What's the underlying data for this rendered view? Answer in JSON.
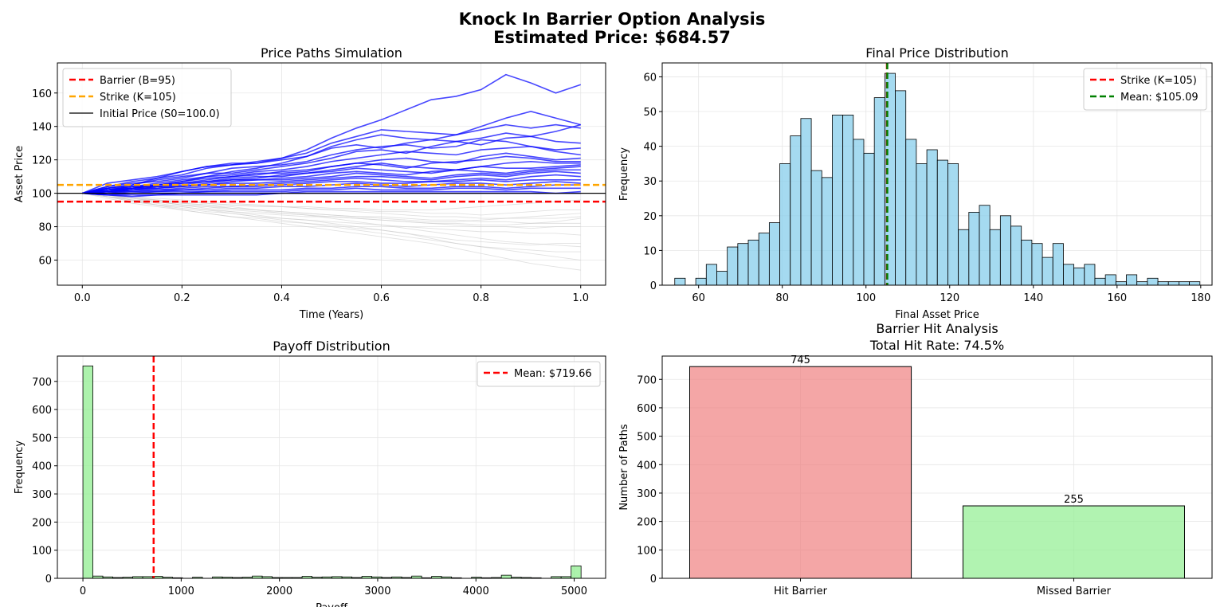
{
  "figure": {
    "title_line1": "Knock In Barrier Option Analysis",
    "title_line2": "Estimated Price: $684.57"
  },
  "chart_data": [
    {
      "id": "paths",
      "type": "line",
      "title": "Price Paths Simulation",
      "xlabel": "Time (Years)",
      "ylabel": "Asset Price",
      "xlim": [
        -0.05,
        1.05
      ],
      "ylim": [
        45,
        178
      ],
      "xticks": [
        0.0,
        0.2,
        0.4,
        0.6,
        0.8,
        1.0
      ],
      "xtick_labels": [
        "0.0",
        "0.2",
        "0.4",
        "0.6",
        "0.8",
        "1.0"
      ],
      "yticks": [
        60,
        80,
        100,
        120,
        140,
        160
      ],
      "grid": true,
      "legend_position": "upper-left",
      "reference_lines": [
        {
          "name": "Barrier (B=95)",
          "value": 95,
          "color": "#ff0000",
          "style": "dashed"
        },
        {
          "name": "Strike (K=105)",
          "value": 105,
          "color": "#ffa500",
          "style": "dashed"
        },
        {
          "name": "Initial Price (S0=100.0)",
          "value": 100,
          "color": "#000000",
          "style": "solid"
        }
      ],
      "time_grid": [
        0,
        0.05,
        0.1,
        0.15,
        0.2,
        0.25,
        0.3,
        0.35,
        0.4,
        0.45,
        0.5,
        0.55,
        0.6,
        0.65,
        0.7,
        0.75,
        0.8,
        0.85,
        0.9,
        0.95,
        1.0
      ],
      "highlight_color": "#0000ff",
      "background_color": "#c8c8c8",
      "highlighted_paths": [
        [
          100,
          106,
          108,
          110,
          113,
          116,
          118,
          118,
          121,
          126,
          133,
          139,
          144,
          150,
          156,
          158,
          162,
          171,
          166,
          160,
          165
        ],
        [
          100,
          103,
          105,
          109,
          111,
          115,
          117,
          119,
          121,
          124,
          130,
          134,
          138,
          137,
          136,
          135,
          140,
          145,
          149,
          145,
          141
        ],
        [
          100,
          102,
          104,
          106,
          108,
          110,
          113,
          115,
          118,
          122,
          127,
          129,
          127,
          130,
          132,
          135,
          138,
          141,
          139,
          141,
          139
        ],
        [
          100,
          104,
          106,
          107,
          109,
          112,
          112,
          114,
          116,
          118,
          121,
          125,
          126,
          124,
          128,
          131,
          129,
          133,
          134,
          131,
          130
        ],
        [
          100,
          101,
          103,
          105,
          107,
          110,
          111,
          113,
          114,
          116,
          119,
          121,
          123,
          125,
          124,
          123,
          126,
          127,
          128,
          125,
          123
        ],
        [
          100,
          102,
          103,
          105,
          107,
          109,
          110,
          112,
          112,
          113,
          116,
          118,
          120,
          121,
          119,
          118,
          122,
          124,
          122,
          120,
          121
        ],
        [
          100,
          103,
          104,
          105,
          106,
          108,
          110,
          111,
          113,
          114,
          116,
          118,
          117,
          115,
          118,
          119,
          120,
          122,
          121,
          119,
          119
        ],
        [
          100,
          102,
          104,
          104,
          105,
          107,
          109,
          110,
          110,
          112,
          114,
          116,
          118,
          116,
          115,
          114,
          116,
          118,
          119,
          118,
          118
        ],
        [
          100,
          101,
          102,
          104,
          106,
          107,
          108,
          109,
          111,
          112,
          113,
          115,
          114,
          113,
          112,
          114,
          116,
          115,
          115,
          116,
          117
        ],
        [
          100,
          101,
          103,
          104,
          104,
          106,
          108,
          108,
          109,
          110,
          112,
          113,
          112,
          111,
          113,
          114,
          113,
          112,
          114,
          115,
          116
        ],
        [
          100,
          102,
          103,
          103,
          104,
          105,
          107,
          108,
          108,
          109,
          110,
          112,
          111,
          110,
          109,
          111,
          112,
          111,
          113,
          114,
          114
        ],
        [
          100,
          101,
          102,
          103,
          104,
          105,
          106,
          106,
          107,
          108,
          109,
          110,
          110,
          109,
          108,
          110,
          111,
          110,
          112,
          113,
          112
        ],
        [
          100,
          100,
          102,
          102,
          103,
          104,
          104,
          105,
          106,
          107,
          108,
          109,
          108,
          107,
          107,
          108,
          109,
          108,
          110,
          111,
          110
        ],
        [
          100,
          101,
          101,
          102,
          102,
          103,
          104,
          104,
          105,
          106,
          107,
          107,
          106,
          106,
          107,
          107,
          108,
          107,
          108,
          108,
          108
        ],
        [
          100,
          100,
          101,
          101,
          102,
          102,
          103,
          103,
          104,
          104,
          105,
          106,
          105,
          104,
          105,
          106,
          106,
          105,
          106,
          107,
          106
        ],
        [
          100,
          100,
          100,
          101,
          101,
          101,
          102,
          102,
          102,
          103,
          103,
          104,
          104,
          103,
          103,
          104,
          104,
          103,
          104,
          105,
          105
        ],
        [
          100,
          99,
          100,
          100,
          100,
          101,
          101,
          101,
          101,
          102,
          102,
          103,
          102,
          102,
          102,
          103,
          103,
          102,
          103,
          103,
          103
        ],
        [
          100,
          99,
          99,
          99,
          100,
          100,
          100,
          100,
          100,
          101,
          101,
          101,
          101,
          101,
          101,
          101,
          101,
          101,
          101,
          100,
          101
        ],
        [
          100,
          99,
          98,
          99,
          99,
          99,
          99,
          99,
          100,
          100,
          100,
          100,
          100,
          100,
          100,
          100,
          100,
          100,
          100,
          100,
          100
        ],
        [
          100,
          104,
          107,
          109,
          113,
          116,
          117,
          118,
          120,
          122,
          128,
          132,
          135,
          133,
          132,
          131,
          133,
          136,
          134,
          137,
          141
        ],
        [
          100,
          103,
          105,
          108,
          110,
          112,
          115,
          116,
          117,
          119,
          123,
          126,
          128,
          129,
          127,
          128,
          132,
          131,
          128,
          126,
          127
        ]
      ],
      "background_paths": [
        [
          100,
          98,
          96,
          95,
          93,
          92,
          90,
          89,
          88,
          87,
          86,
          85,
          84,
          83,
          82,
          81,
          80,
          80,
          79,
          80,
          80
        ],
        [
          100,
          99,
          97,
          95,
          93,
          91,
          89,
          87,
          85,
          84,
          82,
          80,
          78,
          76,
          74,
          72,
          71,
          70,
          69,
          70,
          70
        ],
        [
          100,
          99,
          96,
          93,
          90,
          88,
          86,
          85,
          83,
          82,
          81,
          79,
          78,
          76,
          73,
          70,
          68,
          67,
          66,
          65,
          65
        ],
        [
          100,
          98,
          95,
          93,
          92,
          90,
          89,
          88,
          87,
          86,
          86,
          85,
          84,
          83,
          82,
          82,
          81,
          81,
          82,
          83,
          85
        ],
        [
          100,
          97,
          94,
          92,
          90,
          88,
          86,
          84,
          82,
          80,
          78,
          76,
          74,
          72,
          70,
          67,
          64,
          61,
          58,
          56,
          54
        ],
        [
          100,
          99,
          97,
          96,
          94,
          93,
          92,
          90,
          89,
          88,
          87,
          86,
          85,
          84,
          83,
          83,
          84,
          85,
          86,
          87,
          88
        ],
        [
          100,
          98,
          96,
          94,
          92,
          90,
          88,
          86,
          84,
          82,
          80,
          78,
          76,
          74,
          72,
          70,
          68,
          66,
          64,
          62,
          60
        ],
        [
          100,
          99,
          98,
          96,
          95,
          94,
          93,
          92,
          92,
          91,
          90,
          90,
          89,
          89,
          88,
          88,
          87,
          88,
          89,
          90,
          90
        ],
        [
          100,
          98,
          95,
          93,
          91,
          89,
          88,
          86,
          85,
          84,
          83,
          82,
          81,
          80,
          79,
          78,
          77,
          77,
          76,
          76,
          75
        ],
        [
          100,
          99,
          98,
          97,
          96,
          95,
          94,
          93,
          92,
          91,
          90,
          89,
          88,
          87,
          86,
          86,
          85,
          85,
          85,
          85,
          86
        ],
        [
          100,
          98,
          96,
          95,
          93,
          92,
          91,
          90,
          89,
          88,
          87,
          86,
          86,
          85,
          84,
          84,
          83,
          83,
          82,
          82,
          82
        ],
        [
          100,
          99,
          97,
          95,
          94,
          93,
          91,
          90,
          88,
          87,
          85,
          83,
          81,
          79,
          77,
          75,
          73,
          71,
          70,
          69,
          68
        ],
        [
          100,
          98,
          97,
          96,
          95,
          94,
          93,
          93,
          92,
          92,
          91,
          91,
          90,
          90,
          90,
          91,
          92,
          93,
          94,
          95,
          96
        ]
      ]
    },
    {
      "id": "final_price",
      "type": "bar",
      "title": "Final Price Distribution",
      "xlabel": "Final Asset Price",
      "ylabel": "Frequency",
      "xlim": [
        51.3,
        182.7
      ],
      "ylim": [
        0,
        64
      ],
      "xticks": [
        60,
        80,
        100,
        120,
        140,
        160,
        180
      ],
      "yticks": [
        0,
        10,
        20,
        30,
        40,
        50,
        60
      ],
      "grid": true,
      "legend_position": "upper-right",
      "bin_start": 54.3,
      "bin_width": 2.51,
      "counts": [
        2,
        0,
        2,
        6,
        4,
        11,
        12,
        13,
        15,
        18,
        35,
        43,
        48,
        33,
        31,
        49,
        49,
        42,
        38,
        54,
        61,
        56,
        42,
        35,
        39,
        36,
        35,
        16,
        21,
        23,
        16,
        20,
        17,
        13,
        12,
        8,
        12,
        6,
        5,
        6,
        2,
        3,
        1,
        3,
        1,
        2,
        1,
        1,
        1,
        1
      ],
      "bar_color": "#87ceeb",
      "reference_lines": [
        {
          "name": "Strike (K=105)",
          "value": 105,
          "color": "#ff0000",
          "style": "dashed"
        },
        {
          "name": "Mean: $105.09",
          "value": 105.09,
          "color": "#008000",
          "style": "dashed"
        }
      ]
    },
    {
      "id": "payoff",
      "type": "bar",
      "title": "Payoff Distribution",
      "xlabel": "Payoff",
      "ylabel": "Frequency",
      "xlim": [
        -260,
        5320
      ],
      "ylim": [
        0,
        790
      ],
      "xticks": [
        0,
        1000,
        2000,
        3000,
        4000,
        5000
      ],
      "yticks": [
        0,
        100,
        200,
        300,
        400,
        500,
        600,
        700
      ],
      "grid": true,
      "legend_position": "upper-right",
      "bin_start": 0,
      "bin_width": 101.4,
      "counts": [
        755,
        8,
        5,
        3,
        4,
        6,
        6,
        7,
        4,
        2,
        0,
        4,
        0,
        5,
        4,
        3,
        4,
        8,
        6,
        3,
        3,
        3,
        7,
        4,
        5,
        6,
        5,
        3,
        7,
        5,
        3,
        5,
        3,
        8,
        2,
        7,
        5,
        2,
        0,
        4,
        2,
        3,
        11,
        4,
        3,
        2,
        0,
        6,
        6,
        44
      ],
      "bar_color": "#90ee90",
      "reference_lines": [
        {
          "name": "Mean: $719.66",
          "value": 719.66,
          "color": "#ff0000",
          "style": "dashed"
        }
      ]
    },
    {
      "id": "hits",
      "type": "bar",
      "title_line1": "Barrier Hit Analysis",
      "title_line2": "Total Hit Rate: 74.5%",
      "xlabel": "",
      "ylabel": "Number of Paths",
      "ylim": [
        0,
        782
      ],
      "yticks": [
        0,
        100,
        200,
        300,
        400,
        500,
        600,
        700
      ],
      "grid": true,
      "categories": [
        "Hit Barrier",
        "Missed Barrier"
      ],
      "values": [
        745,
        255
      ],
      "value_labels": [
        "745",
        "255"
      ],
      "colors": [
        "#f08080",
        "#90ee90"
      ]
    }
  ]
}
